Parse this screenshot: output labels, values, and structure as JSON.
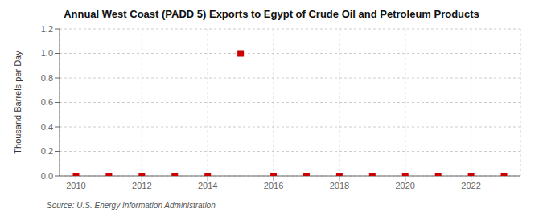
{
  "chart_data": {
    "type": "scatter",
    "title": "Annual West Coast (PADD 5) Exports to Egypt of Crude Oil and Petroleum Products",
    "y_label": "Thousand Barrels per Day",
    "annotations": [
      "Source: U.S. Energy Information Administration"
    ],
    "x": [
      2010,
      2011,
      2012,
      2013,
      2014,
      2015,
      2016,
      2017,
      2018,
      2019,
      2020,
      2021,
      2022,
      2023
    ],
    "values": [
      0,
      0,
      0,
      0,
      0,
      1.0,
      0,
      0,
      0,
      0,
      0,
      0,
      0,
      0
    ],
    "color": "#cc0000",
    "marker": "square",
    "xlim": [
      2009.5,
      2023.5
    ],
    "xticks": [
      2010,
      2012,
      2014,
      2016,
      2018,
      2020,
      2022
    ],
    "ylim": [
      0,
      1.2
    ],
    "yticks": [
      {
        "value": 0,
        "label": "0.0"
      },
      0.2,
      0.4,
      0.6,
      0.8,
      {
        "value": 1,
        "label": "1.0"
      },
      1.2
    ],
    "grid": true
  }
}
